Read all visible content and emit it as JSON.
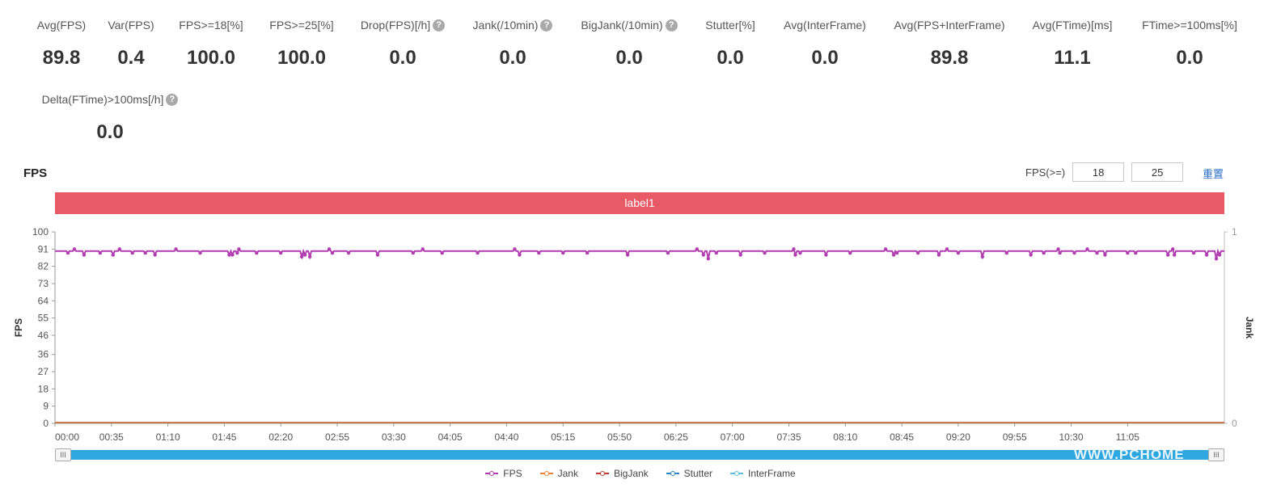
{
  "metrics": [
    {
      "label": "Avg(FPS)",
      "value": "89.8",
      "help": false
    },
    {
      "label": "Var(FPS)",
      "value": "0.4",
      "help": false
    },
    {
      "label": "FPS>=18[%]",
      "value": "100.0",
      "help": false
    },
    {
      "label": "FPS>=25[%]",
      "value": "100.0",
      "help": false
    },
    {
      "label": "Drop(FPS)[/h]",
      "value": "0.0",
      "help": true
    },
    {
      "label": "Jank(/10min)",
      "value": "0.0",
      "help": true
    },
    {
      "label": "BigJank(/10min)",
      "value": "0.0",
      "help": true
    },
    {
      "label": "Stutter[%]",
      "value": "0.0",
      "help": false
    },
    {
      "label": "Avg(InterFrame)",
      "value": "0.0",
      "help": false
    },
    {
      "label": "Avg(FPS+InterFrame)",
      "value": "89.8",
      "help": false
    },
    {
      "label": "Avg(FTime)[ms]",
      "value": "11.1",
      "help": false
    },
    {
      "label": "FTime>=100ms[%]",
      "value": "0.0",
      "help": false
    },
    {
      "label": "Delta(FTime)>100ms[/h]",
      "value": "0.0",
      "help": true
    }
  ],
  "help_glyph": "?",
  "chart_section": {
    "title": "FPS",
    "filter_label": "FPS(>=)",
    "filter_value_1": "18",
    "filter_value_2": "25",
    "reset_label": "重置",
    "label_band_text": "label1",
    "watermark": "WWW.PCHOME"
  },
  "slider": {
    "handle_glyph": "III",
    "start": 0,
    "end": 1
  },
  "colors": {
    "fps": "#b13db1",
    "jank": "#e8803a",
    "bigjank": "#c0392b",
    "stutter": "#2e86c1",
    "interframe": "#5bc0de",
    "label_band": "#e85a66",
    "slider": "#2ea7e0",
    "link": "#2a6fc9"
  },
  "chart_data": {
    "type": "line",
    "ylabel": "FPS",
    "y2label": "Jank",
    "y_ticks": [
      100,
      91,
      82,
      73,
      64,
      55,
      46,
      36,
      27,
      18,
      9,
      0
    ],
    "y_range": [
      0,
      100
    ],
    "y2_ticks": [
      1,
      0
    ],
    "y2_range": [
      0,
      1
    ],
    "x_ticks": [
      "00:00",
      "00:35",
      "01:10",
      "01:45",
      "02:20",
      "02:55",
      "03:30",
      "04:05",
      "04:40",
      "05:15",
      "05:50",
      "06:25",
      "07:00",
      "07:35",
      "08:10",
      "08:45",
      "09:20",
      "09:55",
      "10:30",
      "11:05"
    ],
    "x_range_seconds": [
      0,
      725
    ],
    "legend": [
      "FPS",
      "Jank",
      "BigJank",
      "Stutter",
      "InterFrame"
    ],
    "series": [
      {
        "name": "FPS",
        "baseline": 90,
        "dips": [
          {
            "t": 8,
            "v": 89
          },
          {
            "t": 18,
            "v": 88
          },
          {
            "t": 28,
            "v": 89
          },
          {
            "t": 36,
            "v": 88
          },
          {
            "t": 48,
            "v": 89
          },
          {
            "t": 56,
            "v": 89
          },
          {
            "t": 62,
            "v": 88
          },
          {
            "t": 90,
            "v": 89
          },
          {
            "t": 108,
            "v": 88
          },
          {
            "t": 110,
            "v": 88
          },
          {
            "t": 113,
            "v": 89
          },
          {
            "t": 125,
            "v": 89
          },
          {
            "t": 140,
            "v": 89
          },
          {
            "t": 153,
            "v": 87
          },
          {
            "t": 155,
            "v": 88
          },
          {
            "t": 158,
            "v": 87
          },
          {
            "t": 172,
            "v": 89
          },
          {
            "t": 182,
            "v": 89
          },
          {
            "t": 200,
            "v": 88
          },
          {
            "t": 222,
            "v": 89
          },
          {
            "t": 240,
            "v": 89
          },
          {
            "t": 262,
            "v": 89
          },
          {
            "t": 288,
            "v": 88
          },
          {
            "t": 300,
            "v": 89
          },
          {
            "t": 315,
            "v": 89
          },
          {
            "t": 330,
            "v": 89
          },
          {
            "t": 355,
            "v": 88
          },
          {
            "t": 380,
            "v": 89
          },
          {
            "t": 402,
            "v": 88
          },
          {
            "t": 405,
            "v": 86
          },
          {
            "t": 410,
            "v": 89
          },
          {
            "t": 425,
            "v": 88
          },
          {
            "t": 440,
            "v": 89
          },
          {
            "t": 459,
            "v": 88
          },
          {
            "t": 462,
            "v": 89
          },
          {
            "t": 478,
            "v": 88
          },
          {
            "t": 493,
            "v": 89
          },
          {
            "t": 520,
            "v": 88
          },
          {
            "t": 522,
            "v": 89
          },
          {
            "t": 535,
            "v": 89
          },
          {
            "t": 548,
            "v": 88
          },
          {
            "t": 560,
            "v": 89
          },
          {
            "t": 575,
            "v": 87
          },
          {
            "t": 590,
            "v": 89
          },
          {
            "t": 605,
            "v": 88
          },
          {
            "t": 613,
            "v": 89
          },
          {
            "t": 623,
            "v": 89
          },
          {
            "t": 632,
            "v": 89
          },
          {
            "t": 646,
            "v": 89
          },
          {
            "t": 651,
            "v": 88
          },
          {
            "t": 665,
            "v": 89
          },
          {
            "t": 670,
            "v": 89
          },
          {
            "t": 690,
            "v": 88
          },
          {
            "t": 694,
            "v": 88
          },
          {
            "t": 706,
            "v": 89
          },
          {
            "t": 714,
            "v": 88
          },
          {
            "t": 720,
            "v": 86
          },
          {
            "t": 722,
            "v": 88
          }
        ],
        "peaks": [
          {
            "t": 12,
            "v": 91
          },
          {
            "t": 40,
            "v": 91
          },
          {
            "t": 75,
            "v": 91
          },
          {
            "t": 114,
            "v": 91
          },
          {
            "t": 170,
            "v": 91
          },
          {
            "t": 228,
            "v": 91
          },
          {
            "t": 285,
            "v": 91
          },
          {
            "t": 398,
            "v": 91
          },
          {
            "t": 458,
            "v": 91
          },
          {
            "t": 515,
            "v": 91
          },
          {
            "t": 553,
            "v": 91
          },
          {
            "t": 622,
            "v": 91
          },
          {
            "t": 640,
            "v": 91
          },
          {
            "t": 693,
            "v": 91
          }
        ]
      },
      {
        "name": "Jank",
        "values_constant": 0
      },
      {
        "name": "BigJank",
        "values_constant": 0
      },
      {
        "name": "Stutter",
        "values_constant": 0
      },
      {
        "name": "InterFrame",
        "values_constant": 0
      }
    ]
  }
}
